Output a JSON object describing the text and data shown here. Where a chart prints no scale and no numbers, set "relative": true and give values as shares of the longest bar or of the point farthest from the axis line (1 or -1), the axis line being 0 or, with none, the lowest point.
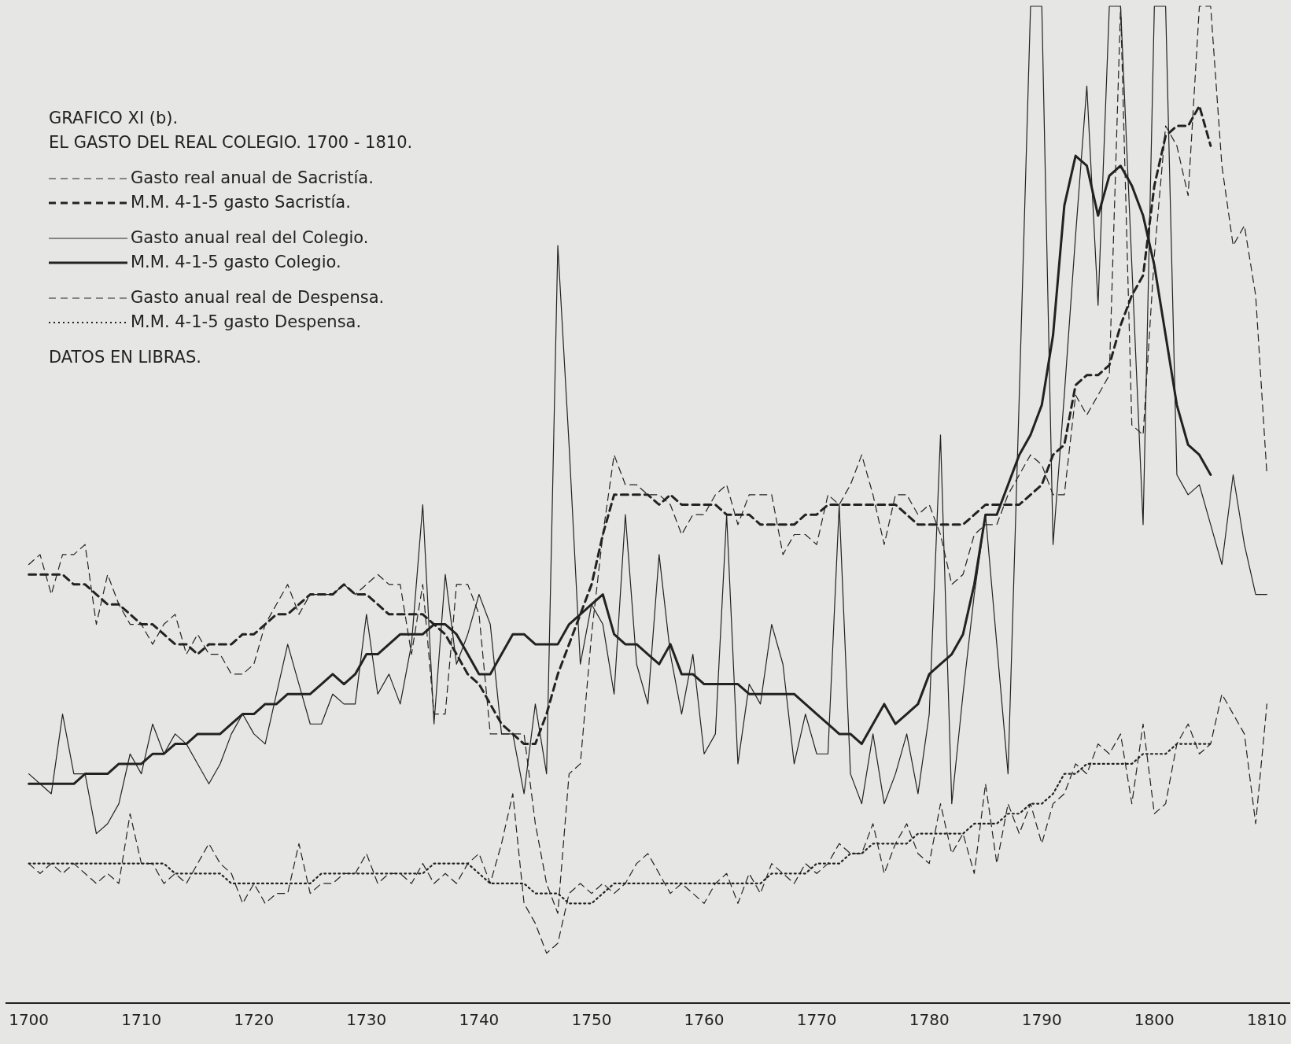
{
  "chart_data": {
    "type": "line",
    "title": "GRAFICO  XI (b).",
    "subtitle": "EL GASTO DEL REAL COLEGIO. 1700 - 1810.",
    "annotations": [
      "DATOS EN LIBRAS."
    ],
    "relative": true,
    "legend": "top left",
    "grid": false,
    "xlim": [
      1698,
      1812
    ],
    "xticks": [
      1700,
      1710,
      1720,
      1730,
      1740,
      1750,
      1760,
      1770,
      1780,
      1790,
      1800,
      1810
    ],
    "x": [
      1700,
      1701,
      1702,
      1703,
      1704,
      1705,
      1706,
      1707,
      1708,
      1709,
      1710,
      1711,
      1712,
      1713,
      1714,
      1715,
      1716,
      1717,
      1718,
      1719,
      1720,
      1721,
      1722,
      1723,
      1724,
      1725,
      1726,
      1727,
      1728,
      1729,
      1730,
      1731,
      1732,
      1733,
      1734,
      1735,
      1736,
      1737,
      1738,
      1739,
      1740,
      1741,
      1742,
      1743,
      1744,
      1745,
      1746,
      1747,
      1748,
      1749,
      1750,
      1751,
      1752,
      1753,
      1754,
      1755,
      1756,
      1757,
      1758,
      1759,
      1760,
      1761,
      1762,
      1763,
      1764,
      1765,
      1766,
      1767,
      1768,
      1769,
      1770,
      1771,
      1772,
      1773,
      1774,
      1775,
      1776,
      1777,
      1778,
      1779,
      1780,
      1781,
      1782,
      1783,
      1784,
      1785,
      1786,
      1787,
      1788,
      1789,
      1790,
      1791,
      1792,
      1793,
      1794,
      1795,
      1796,
      1797,
      1798,
      1799,
      1800,
      1801,
      1802,
      1803,
      1804,
      1805,
      1806,
      1807,
      1808,
      1809,
      1810
    ],
    "series": [
      {
        "name": "Gasto real anual de Sacristía.",
        "color": "#222222",
        "line_style": "dashed",
        "values": [
          0.44,
          0.45,
          0.41,
          0.45,
          0.45,
          0.46,
          0.38,
          0.43,
          0.4,
          0.38,
          0.38,
          0.36,
          0.38,
          0.39,
          0.35,
          0.37,
          0.35,
          0.35,
          0.33,
          0.33,
          0.34,
          0.38,
          0.4,
          0.42,
          0.39,
          0.41,
          0.41,
          0.41,
          0.42,
          0.41,
          0.42,
          0.43,
          0.42,
          0.42,
          0.35,
          0.42,
          0.29,
          0.29,
          0.42,
          0.42,
          0.39,
          0.27,
          0.27,
          0.27,
          0.27,
          0.18,
          0.12,
          0.09,
          0.23,
          0.24,
          0.37,
          0.47,
          0.55,
          0.52,
          0.52,
          0.51,
          0.51,
          0.5,
          0.47,
          0.49,
          0.49,
          0.51,
          0.52,
          0.48,
          0.51,
          0.51,
          0.51,
          0.45,
          0.47,
          0.47,
          0.46,
          0.51,
          0.5,
          0.52,
          0.55,
          0.51,
          0.46,
          0.51,
          0.51,
          0.49,
          0.5,
          0.47,
          0.42,
          0.43,
          0.47,
          0.48,
          0.48,
          0.51,
          0.53,
          0.55,
          0.54,
          0.51,
          0.51,
          0.61,
          0.59,
          0.61,
          0.63,
          1,
          0.58,
          0.57,
          0.75,
          0.88,
          0.86,
          0.81,
          1,
          1,
          0.84,
          0.76,
          0.78,
          0.71,
          0.53
        ]
      },
      {
        "name": "M.M. 4-1-5 gasto Sacristía.",
        "color": "#222222",
        "line_style": "dashed",
        "values": [
          0.43,
          0.43,
          0.43,
          0.43,
          0.42,
          0.42,
          0.41,
          0.4,
          0.4,
          0.39,
          0.38,
          0.38,
          0.37,
          0.36,
          0.36,
          0.35,
          0.36,
          0.36,
          0.36,
          0.37,
          0.37,
          0.38,
          0.39,
          0.39,
          0.4,
          0.41,
          0.41,
          0.41,
          0.42,
          0.41,
          0.41,
          0.4,
          0.39,
          0.39,
          0.39,
          0.39,
          0.38,
          0.37,
          0.35,
          0.33,
          0.32,
          0.3,
          0.28,
          0.27,
          0.26,
          0.26,
          0.29,
          0.33,
          0.36,
          0.39,
          0.42,
          0.47,
          0.51,
          0.51,
          0.51,
          0.51,
          0.5,
          0.51,
          0.5,
          0.5,
          0.5,
          0.5,
          0.49,
          0.49,
          0.49,
          0.48,
          0.48,
          0.48,
          0.48,
          0.49,
          0.49,
          0.5,
          0.5,
          0.5,
          0.5,
          0.5,
          0.5,
          0.5,
          0.49,
          0.48,
          0.48,
          0.48,
          0.48,
          0.48,
          0.49,
          0.5,
          0.5,
          0.5,
          0.5,
          0.51,
          0.52,
          0.55,
          0.56,
          0.62,
          0.63,
          0.63,
          0.64,
          0.68,
          0.71,
          0.73,
          0.82,
          0.87,
          0.88,
          0.88,
          0.9,
          0.86,
          null,
          null,
          null,
          null,
          null
        ]
      },
      {
        "name": "Gasto anual real del Colegio.",
        "color": "#222222",
        "line_style": "solid",
        "values": [
          0.23,
          0.22,
          0.21,
          0.29,
          0.23,
          0.23,
          0.17,
          0.18,
          0.2,
          0.25,
          0.23,
          0.28,
          0.25,
          0.27,
          0.26,
          0.24,
          0.22,
          0.24,
          0.27,
          0.29,
          0.27,
          0.26,
          0.31,
          0.36,
          0.32,
          0.28,
          0.28,
          0.31,
          0.3,
          0.3,
          0.39,
          0.31,
          0.33,
          0.3,
          0.36,
          0.5,
          0.28,
          0.43,
          0.34,
          0.37,
          0.41,
          0.38,
          0.27,
          0.27,
          0.21,
          0.3,
          0.23,
          0.76,
          0.56,
          0.34,
          0.4,
          0.38,
          0.31,
          0.49,
          0.34,
          0.3,
          0.45,
          0.35,
          0.29,
          0.35,
          0.25,
          0.27,
          0.49,
          0.24,
          0.32,
          0.3,
          0.38,
          0.34,
          0.24,
          0.29,
          0.25,
          0.25,
          0.5,
          0.23,
          0.2,
          0.27,
          0.2,
          0.23,
          0.27,
          0.21,
          0.29,
          0.57,
          0.2,
          0.31,
          0.41,
          0.49,
          0.36,
          0.23,
          0.61,
          1,
          1,
          0.46,
          0.61,
          0.77,
          0.92,
          0.7,
          1,
          1,
          0.74,
          0.48,
          1,
          1,
          0.53,
          0.51,
          0.52,
          0.48,
          0.44,
          0.53,
          0.46,
          0.41,
          0.41
        ]
      },
      {
        "name": "M.M. 4-1-5 gasto Colegio.",
        "color": "#222222",
        "line_style": "solid",
        "values": [
          0.22,
          0.22,
          0.22,
          0.22,
          0.22,
          0.23,
          0.23,
          0.23,
          0.24,
          0.24,
          0.24,
          0.25,
          0.25,
          0.26,
          0.26,
          0.27,
          0.27,
          0.27,
          0.28,
          0.29,
          0.29,
          0.3,
          0.3,
          0.31,
          0.31,
          0.31,
          0.32,
          0.33,
          0.32,
          0.33,
          0.35,
          0.35,
          0.36,
          0.37,
          0.37,
          0.37,
          0.38,
          0.38,
          0.37,
          0.35,
          0.33,
          0.33,
          0.35,
          0.37,
          0.37,
          0.36,
          0.36,
          0.36,
          0.38,
          0.39,
          0.4,
          0.41,
          0.37,
          0.36,
          0.36,
          0.35,
          0.34,
          0.36,
          0.33,
          0.33,
          0.32,
          0.32,
          0.32,
          0.32,
          0.31,
          0.31,
          0.31,
          0.31,
          0.31,
          0.3,
          0.29,
          0.28,
          0.27,
          0.27,
          0.26,
          0.28,
          0.3,
          0.28,
          0.29,
          0.3,
          0.33,
          0.34,
          0.35,
          0.37,
          0.42,
          0.49,
          0.49,
          0.52,
          0.55,
          0.57,
          0.6,
          0.67,
          0.8,
          0.85,
          0.84,
          0.79,
          0.83,
          0.84,
          0.82,
          0.79,
          0.74,
          0.67,
          0.6,
          0.56,
          0.55,
          0.53,
          null,
          null,
          null,
          null,
          null
        ]
      },
      {
        "name": "Gasto anual real de Despensa.",
        "color": "#222222",
        "line_style": "dashed",
        "values": [
          0.14,
          0.13,
          0.14,
          0.13,
          0.14,
          0.13,
          0.12,
          0.13,
          0.12,
          0.19,
          0.14,
          0.14,
          0.12,
          0.13,
          0.12,
          0.14,
          0.16,
          0.14,
          0.13,
          0.1,
          0.12,
          0.1,
          0.11,
          0.11,
          0.16,
          0.11,
          0.12,
          0.12,
          0.13,
          0.13,
          0.15,
          0.12,
          0.13,
          0.13,
          0.12,
          0.14,
          0.12,
          0.13,
          0.12,
          0.14,
          0.15,
          0.12,
          0.16,
          0.21,
          0.1,
          0.08,
          0.05,
          0.06,
          0.11,
          0.12,
          0.11,
          0.12,
          0.11,
          0.12,
          0.14,
          0.15,
          0.13,
          0.11,
          0.12,
          0.11,
          0.1,
          0.12,
          0.13,
          0.1,
          0.13,
          0.11,
          0.14,
          0.13,
          0.12,
          0.14,
          0.13,
          0.14,
          0.16,
          0.15,
          0.15,
          0.18,
          0.13,
          0.16,
          0.18,
          0.15,
          0.14,
          0.2,
          0.15,
          0.17,
          0.13,
          0.22,
          0.14,
          0.2,
          0.17,
          0.2,
          0.16,
          0.2,
          0.21,
          0.24,
          0.23,
          0.26,
          0.25,
          0.27,
          0.2,
          0.28,
          0.19,
          0.2,
          0.26,
          0.28,
          0.25,
          0.26,
          0.31,
          0.29,
          0.27,
          0.18,
          0.3
        ]
      },
      {
        "name": "M.M. 4-1-5 gasto Despensa.",
        "color": "#222222",
        "line_style": "dotted",
        "values": [
          0.14,
          0.14,
          0.14,
          0.14,
          0.14,
          0.14,
          0.14,
          0.14,
          0.14,
          0.14,
          0.14,
          0.14,
          0.14,
          0.13,
          0.13,
          0.13,
          0.13,
          0.13,
          0.12,
          0.12,
          0.12,
          0.12,
          0.12,
          0.12,
          0.12,
          0.12,
          0.13,
          0.13,
          0.13,
          0.13,
          0.13,
          0.13,
          0.13,
          0.13,
          0.13,
          0.13,
          0.14,
          0.14,
          0.14,
          0.14,
          0.13,
          0.12,
          0.12,
          0.12,
          0.12,
          0.11,
          0.11,
          0.11,
          0.1,
          0.1,
          0.1,
          0.11,
          0.12,
          0.12,
          0.12,
          0.12,
          0.12,
          0.12,
          0.12,
          0.12,
          0.12,
          0.12,
          0.12,
          0.12,
          0.12,
          0.12,
          0.13,
          0.13,
          0.13,
          0.13,
          0.14,
          0.14,
          0.14,
          0.15,
          0.15,
          0.16,
          0.16,
          0.16,
          0.16,
          0.17,
          0.17,
          0.17,
          0.17,
          0.17,
          0.18,
          0.18,
          0.18,
          0.19,
          0.19,
          0.2,
          0.2,
          0.21,
          0.23,
          0.23,
          0.24,
          0.24,
          0.24,
          0.24,
          0.24,
          0.25,
          0.25,
          0.25,
          0.26,
          0.26,
          0.26,
          0.26,
          null,
          null,
          null,
          null,
          null
        ]
      }
    ]
  }
}
